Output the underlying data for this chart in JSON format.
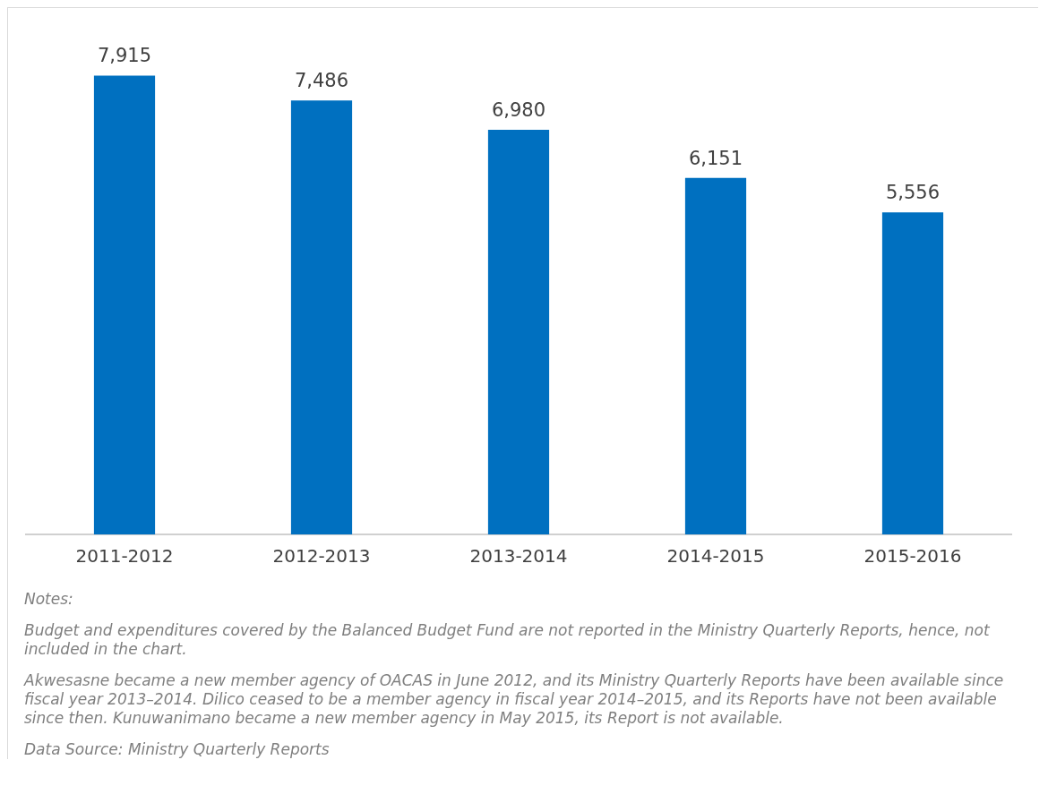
{
  "chart_data": {
    "type": "bar",
    "categories": [
      "2011-2012",
      "2012-2013",
      "2013-2014",
      "2014-2015",
      "2015-2016"
    ],
    "values": [
      7915,
      7486,
      6980,
      6151,
      5556
    ],
    "color": "#0070c0",
    "value_labels": [
      "7,915",
      "7,486",
      "6,980",
      "6,151",
      "5,556"
    ],
    "grid": false,
    "legend": false,
    "annotations": [
      "Notes:",
      "Budget and expenditures covered by the Balanced Budget Fund are not reported in the Ministry Quarterly Reports, hence, not included in the chart.",
      "Akwesasne became a new member agency of OACAS in June 2012, and its Ministry Quarterly Reports have been available since fiscal year 2013–2014. Dilico ceased to be a member agency in fiscal year 2014–2015, and its Reports have not been available since then. Kunuwanimano became a new member agency in May 2015, its Report is not available.",
      "Data Source: Ministry Quarterly Reports"
    ]
  }
}
